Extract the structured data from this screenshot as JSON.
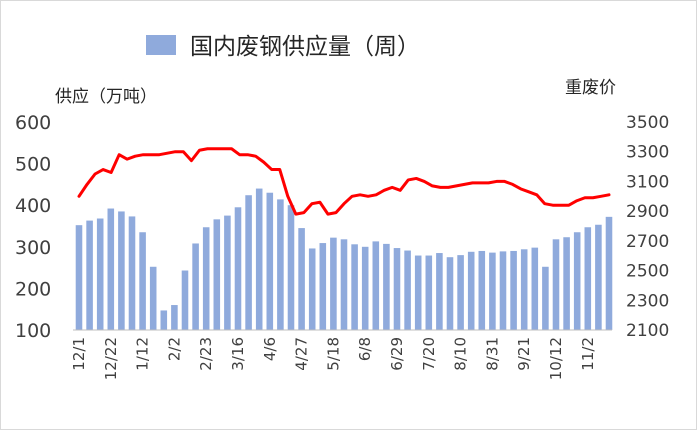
{
  "chart_data": {
    "type": "bar",
    "legend": "国内废钢供应量（周）",
    "ylabel_left": "供应（万吨）",
    "ylabel_right": "重废价",
    "y_left_range": [
      100,
      600
    ],
    "y_left_ticks": [
      "600",
      "500",
      "400",
      "300",
      "200",
      "100"
    ],
    "y_right_range": [
      2100,
      3500
    ],
    "y_right_ticks": [
      "3500",
      "3300",
      "3100",
      "2900",
      "2700",
      "2500",
      "2300",
      "2100"
    ],
    "x_tick_labels": [
      "12/1",
      "12/22",
      "1/12",
      "2/2",
      "2/23",
      "3/16",
      "4/6",
      "4/27",
      "5/18",
      "6/8",
      "6/29",
      "7/20",
      "8/10",
      "8/31",
      "9/21",
      "10/12",
      "11/2"
    ],
    "series": [
      {
        "name": "国内废钢供应量（周）",
        "type": "bar",
        "color": "#8faadc",
        "values": [
          352,
          363,
          368,
          392,
          385,
          373,
          335,
          252,
          147,
          160,
          243,
          308,
          347,
          366,
          375,
          395,
          424,
          440,
          430,
          414,
          400,
          345,
          296,
          309,
          322,
          318,
          306,
          300,
          313,
          307,
          297,
          291,
          279,
          279,
          285,
          275,
          280,
          288,
          290,
          286,
          289,
          290,
          294,
          298,
          252,
          318,
          323,
          335,
          347,
          353,
          372
        ]
      },
      {
        "type": "line",
        "color": "#ff0000",
        "values": [
          3000,
          3080,
          3150,
          3180,
          3160,
          3280,
          3250,
          3270,
          3280,
          3280,
          3280,
          3290,
          3300,
          3300,
          3240,
          3310,
          3320,
          3320,
          3320,
          3320,
          3280,
          3280,
          3270,
          3230,
          3180,
          3180,
          3000,
          2880,
          2890,
          2950,
          2960,
          2880,
          2890,
          2950,
          3000,
          3010,
          3000,
          3010,
          3040,
          3060,
          3040,
          3110,
          3120,
          3100,
          3070,
          3060,
          3060,
          3070,
          3080,
          3090,
          3090,
          3090,
          3100,
          3100,
          3080,
          3050,
          3030,
          3010,
          2950,
          2940,
          2940,
          2940,
          2970,
          2990,
          2990,
          3000,
          3010
        ]
      }
    ]
  }
}
